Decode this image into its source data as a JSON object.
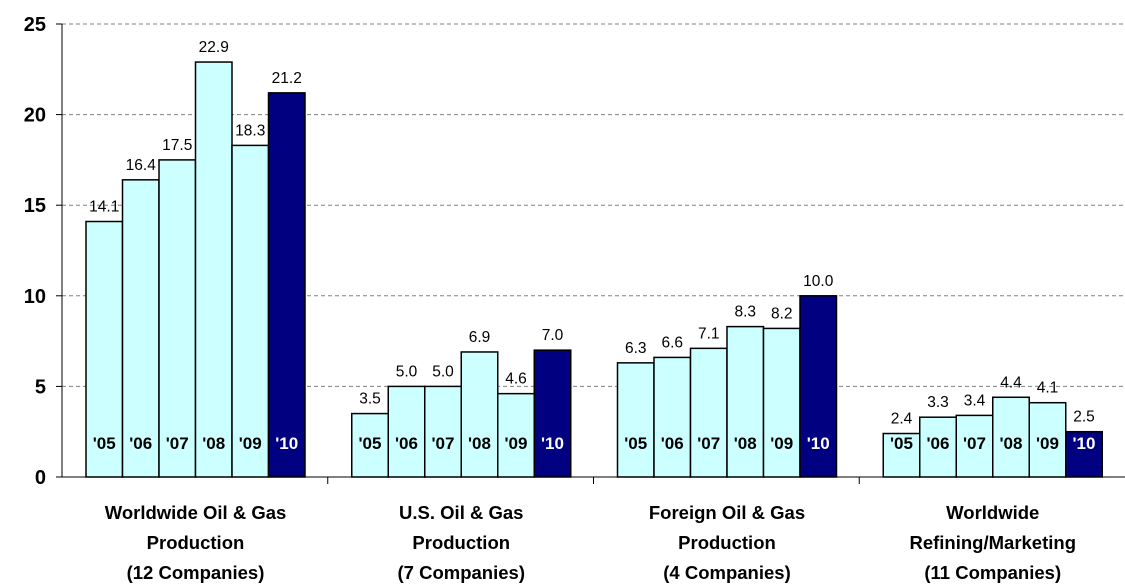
{
  "chart_data": {
    "type": "bar",
    "ylim": [
      0,
      25
    ],
    "yticks": [
      "0",
      "5",
      "10",
      "15",
      "20",
      "25"
    ],
    "grid": "horizontal dashed",
    "colors": {
      "bar": "#ccffff",
      "highlight": "#000080",
      "outline": "#000000",
      "grid": "#808080"
    },
    "groups": [
      {
        "label_lines": [
          "Worldwide Oil & Gas",
          "Production",
          "(12 Companies)"
        ],
        "years": [
          "'05",
          "'06",
          "'07",
          "'08",
          "'09",
          "'10"
        ],
        "values": [
          14.1,
          16.4,
          17.5,
          22.9,
          18.3,
          21.2
        ],
        "value_labels": [
          "14.1",
          "16.4",
          "17.5",
          "22.9",
          "18.3",
          "21.2"
        ]
      },
      {
        "label_lines": [
          "U.S. Oil & Gas",
          "Production",
          "(7 Companies)"
        ],
        "years": [
          "'05",
          "'06",
          "'07",
          "'08",
          "'09",
          "'10"
        ],
        "values": [
          3.5,
          5.0,
          5.0,
          6.9,
          4.6,
          7.0
        ],
        "value_labels": [
          "3.5",
          "5.0",
          "5.0",
          "6.9",
          "4.6",
          "7.0"
        ]
      },
      {
        "label_lines": [
          "Foreign Oil & Gas",
          "Production",
          "(4 Companies)"
        ],
        "years": [
          "'05",
          "'06",
          "'07",
          "'08",
          "'09",
          "'10"
        ],
        "values": [
          6.3,
          6.6,
          7.1,
          8.3,
          8.2,
          10.0
        ],
        "value_labels": [
          "6.3",
          "6.6",
          "7.1",
          "8.3",
          "8.2",
          "10.0"
        ]
      },
      {
        "label_lines": [
          "Worldwide",
          "Refining/Marketing",
          "(11 Companies)"
        ],
        "years": [
          "'05",
          "'06",
          "'07",
          "'08",
          "'09",
          "'10"
        ],
        "values": [
          2.4,
          3.3,
          3.4,
          4.4,
          4.1,
          2.5
        ],
        "value_labels": [
          "2.4",
          "3.3",
          "3.4",
          "4.4",
          "4.1",
          "2.5"
        ]
      }
    ]
  }
}
